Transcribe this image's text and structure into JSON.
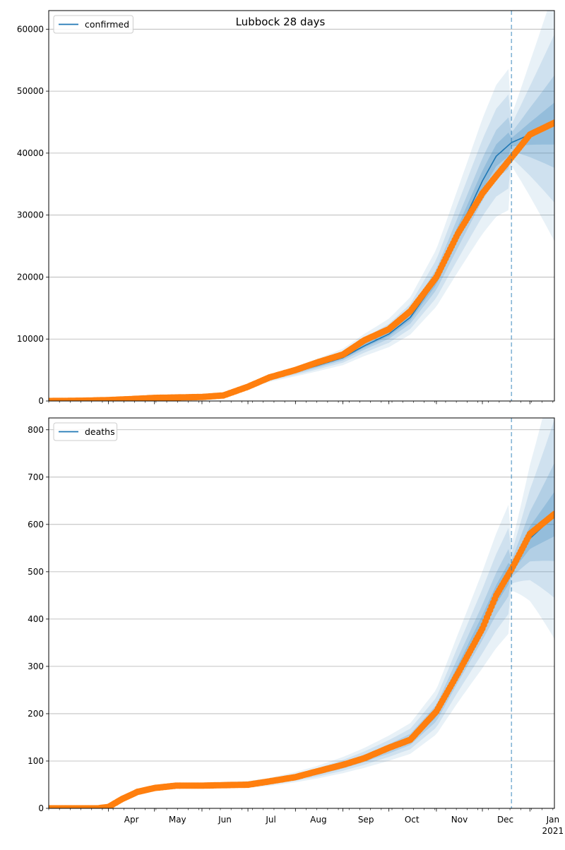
{
  "chart_data": [
    {
      "type": "line",
      "title": "Lubbock 28 days",
      "xlabel": "",
      "ylabel": "",
      "ylim": [
        0,
        63000
      ],
      "yticks": [
        0,
        10000,
        20000,
        30000,
        40000,
        50000,
        60000
      ],
      "xlim": [
        "2020-02-22",
        "2021-01-17"
      ],
      "x_month_ticks": [
        {
          "date": "2020-04-01",
          "label": "Apr"
        },
        {
          "date": "2020-05-01",
          "label": "May"
        },
        {
          "date": "2020-06-01",
          "label": "Jun"
        },
        {
          "date": "2020-07-01",
          "label": "Jul"
        },
        {
          "date": "2020-08-01",
          "label": "Aug"
        },
        {
          "date": "2020-09-01",
          "label": "Sep"
        },
        {
          "date": "2020-10-01",
          "label": "Oct"
        },
        {
          "date": "2020-11-01",
          "label": "Nov"
        },
        {
          "date": "2020-12-01",
          "label": "Dec"
        },
        {
          "date": "2021-01-01",
          "label": "Jan",
          "sublabel": "2021"
        }
      ],
      "show_x_labels": false,
      "grid": "y",
      "legend": "top-left",
      "forecast_start": "2020-12-20",
      "series": [
        {
          "name": "confirmed",
          "kind": "model",
          "color": "#1f77b4",
          "x": [
            "2020-02-22",
            "2020-03-15",
            "2020-04-01",
            "2020-04-15",
            "2020-05-01",
            "2020-06-01",
            "2020-06-15",
            "2020-07-01",
            "2020-07-15",
            "2020-08-01",
            "2020-08-15",
            "2020-09-01",
            "2020-09-15",
            "2020-10-01",
            "2020-10-15",
            "2020-11-01",
            "2020-11-15",
            "2020-12-01",
            "2020-12-10",
            "2020-12-20",
            "2021-01-01",
            "2021-01-17"
          ],
          "y": [
            0,
            50,
            150,
            300,
            500,
            650,
            900,
            2200,
            3600,
            4700,
            5700,
            7000,
            8900,
            10800,
            13500,
            19500,
            27000,
            35500,
            39500,
            41700,
            43000,
            44500
          ]
        },
        {
          "name": "",
          "kind": "observed",
          "color": "#ff7f0e",
          "x": [
            "2020-02-22",
            "2020-03-15",
            "2020-04-01",
            "2020-04-15",
            "2020-05-01",
            "2020-06-01",
            "2020-06-15",
            "2020-07-01",
            "2020-07-15",
            "2020-08-01",
            "2020-08-15",
            "2020-09-01",
            "2020-09-15",
            "2020-10-01",
            "2020-10-15",
            "2020-11-01",
            "2020-11-15",
            "2020-12-01",
            "2020-12-10",
            "2020-12-20",
            "2021-01-01",
            "2021-01-17"
          ],
          "y": [
            0,
            50,
            150,
            300,
            500,
            650,
            900,
            2300,
            3800,
            5000,
            6200,
            7500,
            9800,
            11600,
            14500,
            20000,
            27000,
            33500,
            36300,
            39300,
            43000,
            44900
          ]
        }
      ]
    },
    {
      "type": "line",
      "title": "",
      "xlabel": "",
      "ylabel": "",
      "ylim": [
        0,
        825
      ],
      "yticks": [
        0,
        100,
        200,
        300,
        400,
        500,
        600,
        700,
        800
      ],
      "xlim": [
        "2020-02-22",
        "2021-01-17"
      ],
      "x_month_ticks": [
        {
          "date": "2020-04-01",
          "label": "Apr"
        },
        {
          "date": "2020-05-01",
          "label": "May"
        },
        {
          "date": "2020-06-01",
          "label": "Jun"
        },
        {
          "date": "2020-07-01",
          "label": "Jul"
        },
        {
          "date": "2020-08-01",
          "label": "Aug"
        },
        {
          "date": "2020-09-01",
          "label": "Sep"
        },
        {
          "date": "2020-10-01",
          "label": "Oct"
        },
        {
          "date": "2020-11-01",
          "label": "Nov"
        },
        {
          "date": "2020-12-01",
          "label": "Dec"
        },
        {
          "date": "2021-01-01",
          "label": "Jan",
          "sublabel": "2021"
        }
      ],
      "show_x_labels": true,
      "grid": "y",
      "legend": "top-left",
      "forecast_start": "2020-12-20",
      "series": [
        {
          "name": "deaths",
          "kind": "model",
          "color": "#1f77b4",
          "x": [
            "2020-02-22",
            "2020-03-25",
            "2020-04-01",
            "2020-04-10",
            "2020-04-20",
            "2020-05-01",
            "2020-05-15",
            "2020-06-01",
            "2020-06-15",
            "2020-07-01",
            "2020-07-15",
            "2020-08-01",
            "2020-08-15",
            "2020-09-01",
            "2020-09-15",
            "2020-10-01",
            "2020-10-15",
            "2020-11-01",
            "2020-11-15",
            "2020-12-01",
            "2020-12-10",
            "2020-12-20",
            "2021-01-01",
            "2021-01-17"
          ],
          "y": [
            0,
            0,
            3,
            15,
            30,
            40,
            46,
            48,
            49,
            50,
            55,
            65,
            75,
            90,
            105,
            125,
            145,
            200,
            290,
            390,
            450,
            505,
            570,
            618
          ]
        },
        {
          "name": "",
          "kind": "observed",
          "color": "#ff7f0e",
          "x": [
            "2020-02-22",
            "2020-03-25",
            "2020-04-01",
            "2020-04-10",
            "2020-04-20",
            "2020-05-01",
            "2020-05-15",
            "2020-06-01",
            "2020-06-15",
            "2020-07-01",
            "2020-07-15",
            "2020-08-01",
            "2020-08-15",
            "2020-09-01",
            "2020-09-15",
            "2020-10-01",
            "2020-10-15",
            "2020-11-01",
            "2020-11-15",
            "2020-12-01",
            "2020-12-10",
            "2020-12-20",
            "2021-01-01",
            "2021-01-17"
          ],
          "y": [
            0,
            0,
            3,
            20,
            35,
            43,
            48,
            48,
            49,
            50,
            57,
            66,
            78,
            92,
            106,
            128,
            145,
            205,
            285,
            380,
            450,
            505,
            580,
            622
          ]
        }
      ]
    }
  ]
}
